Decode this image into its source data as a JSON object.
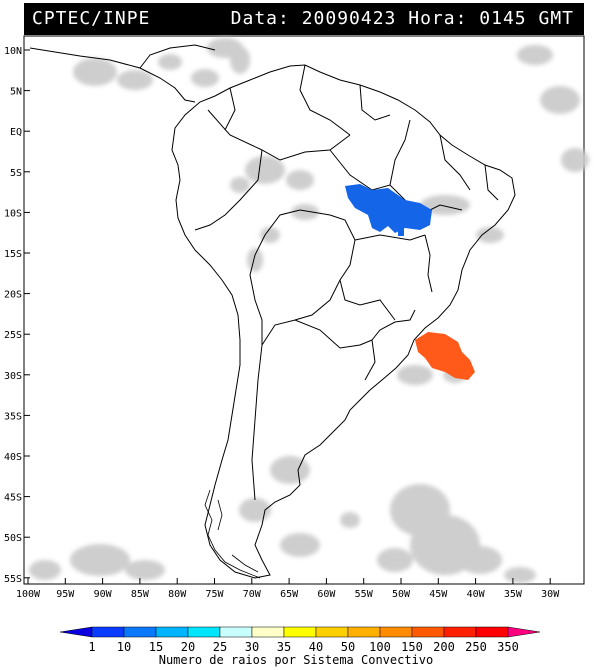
{
  "header": {
    "title": "CPTEC/INPE",
    "date_label": "Data:",
    "date_value": "20090423",
    "hour_label": "Hora:",
    "hour_value": "0145",
    "tz": "GMT"
  },
  "map": {
    "lat_labels": [
      "10N",
      "5N",
      "EQ",
      "5S",
      "10S",
      "15S",
      "20S",
      "25S",
      "30S",
      "35S",
      "40S",
      "45S",
      "50S",
      "55S"
    ],
    "lon_labels": [
      "100W",
      "95W",
      "90W",
      "85W",
      "80W",
      "75W",
      "70W",
      "65W",
      "60W",
      "55W",
      "50W",
      "45W",
      "40W",
      "35W",
      "30W"
    ],
    "convective_systems": [
      {
        "name": "blue-system",
        "color": "#1565e8"
      },
      {
        "name": "orange-system",
        "color": "#ff5a1a"
      }
    ],
    "cloud_color": "#c8c8c8",
    "land_outline_color": "#000000"
  },
  "colorbar": {
    "ticks": [
      "1",
      "10",
      "15",
      "20",
      "25",
      "30",
      "35",
      "40",
      "50",
      "100",
      "150",
      "200",
      "250",
      "350"
    ],
    "colors": [
      "#0a00e0",
      "#0a3cff",
      "#0a78ff",
      "#00b4ff",
      "#00e6ff",
      "#c8ffff",
      "#ffffc8",
      "#ffff00",
      "#ffd000",
      "#ffb000",
      "#ff8c00",
      "#ff5a00",
      "#ff2000",
      "#ff0000",
      "#ff0080"
    ],
    "title": "Numero de raios por Sistema Convectivo"
  }
}
